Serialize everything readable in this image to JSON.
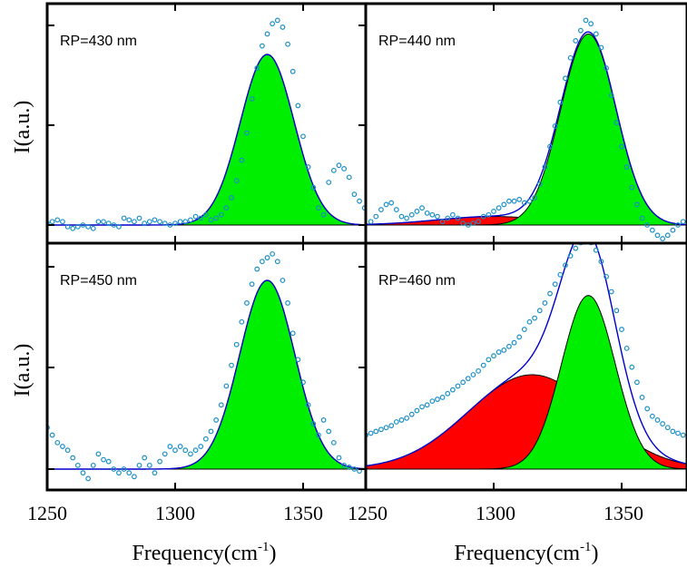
{
  "chart_data": [
    {
      "type": "area",
      "panel_label": "RP=430 nm",
      "ylabel": "I(a.u.)",
      "xlim": [
        1250,
        1375
      ],
      "ylim": [
        0,
        1.2
      ],
      "components": [
        {
          "color": "#00ee00",
          "center": 1336,
          "sigma": 10.5,
          "amplitude": 1.0
        }
      ],
      "fit_envelope": {
        "color": "#0000cc"
      },
      "measured": {
        "color": "#1a8fc6",
        "points": [
          [
            1250,
            0.01
          ],
          [
            1252,
            0.02
          ],
          [
            1254,
            0.03
          ],
          [
            1256,
            0.02
          ],
          [
            1258,
            -0.01
          ],
          [
            1260,
            -0.02
          ],
          [
            1262,
            -0.01
          ],
          [
            1264,
            0.0
          ],
          [
            1266,
            -0.01
          ],
          [
            1268,
            -0.02
          ],
          [
            1270,
            0.02
          ],
          [
            1272,
            0.02
          ],
          [
            1274,
            0.01
          ],
          [
            1276,
            0.0
          ],
          [
            1278,
            -0.01
          ],
          [
            1280,
            0.04
          ],
          [
            1282,
            0.03
          ],
          [
            1284,
            0.02
          ],
          [
            1286,
            0.04
          ],
          [
            1288,
            0.01
          ],
          [
            1290,
            0.02
          ],
          [
            1292,
            0.03
          ],
          [
            1294,
            0.02
          ],
          [
            1296,
            0.01
          ],
          [
            1298,
            0.0
          ],
          [
            1300,
            0.01
          ],
          [
            1302,
            0.02
          ],
          [
            1304,
            0.02
          ],
          [
            1306,
            0.03
          ],
          [
            1308,
            0.05
          ],
          [
            1310,
            0.04
          ],
          [
            1312,
            0.06
          ],
          [
            1314,
            0.03
          ],
          [
            1316,
            0.04
          ],
          [
            1318,
            0.06
          ],
          [
            1320,
            0.1
          ],
          [
            1322,
            0.16
          ],
          [
            1324,
            0.26
          ],
          [
            1326,
            0.38
          ],
          [
            1328,
            0.54
          ],
          [
            1330,
            0.74
          ],
          [
            1332,
            0.92
          ],
          [
            1334,
            1.05
          ],
          [
            1336,
            1.12
          ],
          [
            1338,
            1.18
          ],
          [
            1340,
            1.2
          ],
          [
            1342,
            1.16
          ],
          [
            1344,
            1.06
          ],
          [
            1346,
            0.9
          ],
          [
            1348,
            0.7
          ],
          [
            1350,
            0.52
          ],
          [
            1352,
            0.34
          ],
          [
            1354,
            0.22
          ],
          [
            1356,
            0.1
          ],
          [
            1358,
            0.06
          ],
          [
            1360,
            0.25
          ],
          [
            1362,
            0.32
          ],
          [
            1364,
            0.35
          ],
          [
            1366,
            0.33
          ],
          [
            1368,
            0.28
          ],
          [
            1370,
            0.18
          ],
          [
            1372,
            0.14
          ],
          [
            1374,
            0.1
          ]
        ]
      }
    },
    {
      "type": "area",
      "panel_label": "RP=440 nm",
      "ylabel": "",
      "xlim": [
        1250,
        1375
      ],
      "ylim": [
        0,
        1.2
      ],
      "components": [
        {
          "color": "#ff0000",
          "center": 1300,
          "sigma": 22,
          "amplitude": 0.05
        },
        {
          "color": "#00ee00",
          "center": 1337,
          "sigma": 10.8,
          "amplitude": 1.12
        }
      ],
      "fit_envelope": {
        "color": "#0000cc"
      },
      "measured": {
        "color": "#1a8fc6",
        "points": [
          [
            1252,
            0.02
          ],
          [
            1254,
            0.05
          ],
          [
            1256,
            0.09
          ],
          [
            1258,
            0.12
          ],
          [
            1260,
            0.13
          ],
          [
            1262,
            0.09
          ],
          [
            1264,
            0.05
          ],
          [
            1266,
            0.04
          ],
          [
            1268,
            0.06
          ],
          [
            1270,
            0.08
          ],
          [
            1272,
            0.1
          ],
          [
            1274,
            0.07
          ],
          [
            1276,
            0.06
          ],
          [
            1278,
            0.05
          ],
          [
            1280,
            0.02
          ],
          [
            1282,
            0.04
          ],
          [
            1284,
            0.06
          ],
          [
            1286,
            0.04
          ],
          [
            1288,
            0.01
          ],
          [
            1290,
            0.0
          ],
          [
            1292,
            0.01
          ],
          [
            1294,
            0.02
          ],
          [
            1296,
            0.05
          ],
          [
            1298,
            0.06
          ],
          [
            1300,
            0.08
          ],
          [
            1302,
            0.1
          ],
          [
            1304,
            0.12
          ],
          [
            1306,
            0.14
          ],
          [
            1308,
            0.14
          ],
          [
            1310,
            0.15
          ],
          [
            1312,
            0.13
          ],
          [
            1314,
            0.14
          ],
          [
            1316,
            0.16
          ],
          [
            1318,
            0.24
          ],
          [
            1320,
            0.34
          ],
          [
            1322,
            0.46
          ],
          [
            1324,
            0.58
          ],
          [
            1326,
            0.72
          ],
          [
            1328,
            0.86
          ],
          [
            1330,
            0.98
          ],
          [
            1332,
            1.08
          ],
          [
            1334,
            1.14
          ],
          [
            1336,
            1.2
          ],
          [
            1338,
            1.18
          ],
          [
            1340,
            1.12
          ],
          [
            1342,
            1.04
          ],
          [
            1344,
            0.92
          ],
          [
            1346,
            0.76
          ],
          [
            1348,
            0.6
          ],
          [
            1350,
            0.46
          ],
          [
            1352,
            0.34
          ],
          [
            1354,
            0.22
          ],
          [
            1356,
            0.12
          ],
          [
            1358,
            0.04
          ],
          [
            1360,
            0.0
          ],
          [
            1362,
            -0.03
          ],
          [
            1364,
            -0.06
          ],
          [
            1366,
            -0.08
          ],
          [
            1368,
            -0.06
          ],
          [
            1370,
            -0.03
          ],
          [
            1372,
            0.0
          ],
          [
            1374,
            0.02
          ]
        ]
      }
    },
    {
      "type": "area",
      "panel_label": "RP=450 nm",
      "ylabel": "I(a.u.)",
      "xlim": [
        1250,
        1375
      ],
      "ylim": [
        0,
        1.2
      ],
      "components": [
        {
          "color": "#00ee00",
          "center": 1336,
          "sigma": 10.8,
          "amplitude": 1.0
        }
      ],
      "fit_envelope": {
        "color": "#0000cc"
      },
      "measured": {
        "color": "#1a8fc6",
        "points": [
          [
            1250,
            0.22
          ],
          [
            1252,
            0.18
          ],
          [
            1254,
            0.14
          ],
          [
            1256,
            0.12
          ],
          [
            1258,
            0.1
          ],
          [
            1260,
            0.06
          ],
          [
            1262,
            0.02
          ],
          [
            1264,
            -0.02
          ],
          [
            1266,
            -0.05
          ],
          [
            1268,
            0.02
          ],
          [
            1270,
            0.08
          ],
          [
            1272,
            0.05
          ],
          [
            1274,
            0.04
          ],
          [
            1276,
            0.0
          ],
          [
            1278,
            -0.02
          ],
          [
            1280,
            0.0
          ],
          [
            1282,
            -0.02
          ],
          [
            1284,
            -0.04
          ],
          [
            1286,
            0.02
          ],
          [
            1288,
            0.06
          ],
          [
            1290,
            0.02
          ],
          [
            1292,
            -0.02
          ],
          [
            1294,
            0.04
          ],
          [
            1296,
            0.08
          ],
          [
            1298,
            0.12
          ],
          [
            1300,
            0.1
          ],
          [
            1302,
            0.12
          ],
          [
            1304,
            0.1
          ],
          [
            1306,
            0.08
          ],
          [
            1308,
            0.1
          ],
          [
            1310,
            0.12
          ],
          [
            1312,
            0.16
          ],
          [
            1314,
            0.2
          ],
          [
            1316,
            0.26
          ],
          [
            1318,
            0.34
          ],
          [
            1320,
            0.44
          ],
          [
            1322,
            0.55
          ],
          [
            1324,
            0.66
          ],
          [
            1326,
            0.78
          ],
          [
            1328,
            0.88
          ],
          [
            1330,
            0.98
          ],
          [
            1332,
            1.06
          ],
          [
            1334,
            1.1
          ],
          [
            1336,
            1.12
          ],
          [
            1338,
            1.14
          ],
          [
            1340,
            1.1
          ],
          [
            1342,
            1.0
          ],
          [
            1344,
            0.88
          ],
          [
            1346,
            0.72
          ],
          [
            1348,
            0.58
          ],
          [
            1350,
            0.46
          ],
          [
            1352,
            0.34
          ],
          [
            1354,
            0.24
          ],
          [
            1356,
            0.18
          ],
          [
            1358,
            0.26
          ],
          [
            1360,
            0.2
          ],
          [
            1362,
            0.14
          ],
          [
            1364,
            0.06
          ],
          [
            1366,
            0.02
          ],
          [
            1368,
            0.01
          ],
          [
            1370,
            0.0
          ],
          [
            1372,
            -0.01
          ]
        ]
      }
    },
    {
      "type": "area",
      "panel_label": "RP=460 nm",
      "ylabel": "",
      "xlim": [
        1250,
        1375
      ],
      "ylim": [
        0,
        1.2
      ],
      "components": [
        {
          "color": "#ff0000",
          "center": 1315,
          "sigma": 25,
          "amplitude": 0.5
        },
        {
          "color": "#00ee00",
          "center": 1337,
          "sigma": 10.5,
          "amplitude": 0.92
        }
      ],
      "fit_envelope": {
        "color": "#0000cc"
      },
      "measured": {
        "color": "#1a8fc6",
        "points": [
          [
            1250,
            0.18
          ],
          [
            1252,
            0.19
          ],
          [
            1254,
            0.2
          ],
          [
            1256,
            0.21
          ],
          [
            1258,
            0.22
          ],
          [
            1260,
            0.23
          ],
          [
            1262,
            0.25
          ],
          [
            1264,
            0.26
          ],
          [
            1266,
            0.27
          ],
          [
            1268,
            0.29
          ],
          [
            1270,
            0.31
          ],
          [
            1272,
            0.33
          ],
          [
            1274,
            0.34
          ],
          [
            1276,
            0.36
          ],
          [
            1278,
            0.37
          ],
          [
            1280,
            0.38
          ],
          [
            1282,
            0.4
          ],
          [
            1284,
            0.42
          ],
          [
            1286,
            0.44
          ],
          [
            1288,
            0.46
          ],
          [
            1290,
            0.48
          ],
          [
            1292,
            0.5
          ],
          [
            1294,
            0.52
          ],
          [
            1296,
            0.55
          ],
          [
            1298,
            0.58
          ],
          [
            1300,
            0.6
          ],
          [
            1302,
            0.62
          ],
          [
            1304,
            0.63
          ],
          [
            1306,
            0.65
          ],
          [
            1308,
            0.67
          ],
          [
            1310,
            0.7
          ],
          [
            1312,
            0.74
          ],
          [
            1314,
            0.78
          ],
          [
            1316,
            0.8
          ],
          [
            1318,
            0.84
          ],
          [
            1320,
            0.88
          ],
          [
            1322,
            0.93
          ],
          [
            1324,
            0.98
          ],
          [
            1326,
            1.03
          ],
          [
            1328,
            1.08
          ],
          [
            1330,
            1.13
          ],
          [
            1332,
            1.17
          ],
          [
            1334,
            1.2
          ],
          [
            1336,
            1.22
          ],
          [
            1338,
            1.2
          ],
          [
            1340,
            1.16
          ],
          [
            1342,
            1.1
          ],
          [
            1344,
            1.02
          ],
          [
            1346,
            0.94
          ],
          [
            1348,
            0.84
          ],
          [
            1350,
            0.74
          ],
          [
            1352,
            0.64
          ],
          [
            1354,
            0.54
          ],
          [
            1356,
            0.46
          ],
          [
            1358,
            0.38
          ],
          [
            1360,
            0.32
          ],
          [
            1362,
            0.28
          ],
          [
            1364,
            0.26
          ],
          [
            1366,
            0.24
          ],
          [
            1368,
            0.22
          ],
          [
            1370,
            0.2
          ],
          [
            1372,
            0.19
          ],
          [
            1374,
            0.18
          ]
        ]
      }
    }
  ],
  "axes": {
    "x_ticks": [
      "1250",
      "1300",
      "1350"
    ],
    "x_tick_values": [
      1250,
      1300,
      1350
    ],
    "right_panel_x_ticks": [
      "1250",
      "1300",
      "1350"
    ],
    "xlabel": {
      "text": "Frequency(cm",
      "superscript": "-1",
      "suffix": ")"
    },
    "ylabel": "I(a.u.)"
  },
  "colors": {
    "frame": "#000000",
    "background": "#ffffff"
  }
}
